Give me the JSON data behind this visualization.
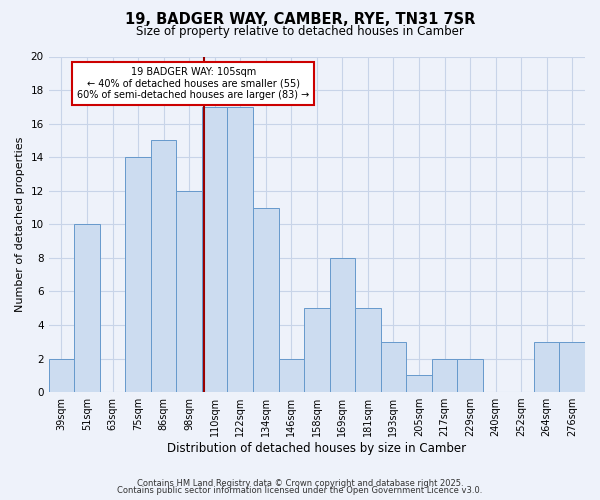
{
  "title": "19, BADGER WAY, CAMBER, RYE, TN31 7SR",
  "subtitle": "Size of property relative to detached houses in Camber",
  "xlabel": "Distribution of detached houses by size in Camber",
  "ylabel": "Number of detached properties",
  "bin_labels": [
    "39sqm",
    "51sqm",
    "63sqm",
    "75sqm",
    "86sqm",
    "98sqm",
    "110sqm",
    "122sqm",
    "134sqm",
    "146sqm",
    "158sqm",
    "169sqm",
    "181sqm",
    "193sqm",
    "205sqm",
    "217sqm",
    "229sqm",
    "240sqm",
    "252sqm",
    "264sqm",
    "276sqm"
  ],
  "bar_heights": [
    2,
    10,
    0,
    14,
    15,
    12,
    17,
    17,
    11,
    2,
    5,
    8,
    5,
    3,
    1,
    2,
    2,
    0,
    0,
    3,
    3
  ],
  "bar_color": "#ccdcf0",
  "bar_edge_color": "#6699cc",
  "vline_bin_index": 5.58,
  "ylim": [
    0,
    20
  ],
  "yticks": [
    0,
    2,
    4,
    6,
    8,
    10,
    12,
    14,
    16,
    18,
    20
  ],
  "annotation_title": "19 BADGER WAY: 105sqm",
  "annotation_line1": "← 40% of detached houses are smaller (55)",
  "annotation_line2": "60% of semi-detached houses are larger (83) →",
  "annotation_box_facecolor": "#ffffff",
  "annotation_box_edgecolor": "#cc0000",
  "vline_color": "#990000",
  "grid_color": "#c8d4e8",
  "background_color": "#eef2fa",
  "footnote1": "Contains HM Land Registry data © Crown copyright and database right 2025.",
  "footnote2": "Contains public sector information licensed under the Open Government Licence v3.0."
}
